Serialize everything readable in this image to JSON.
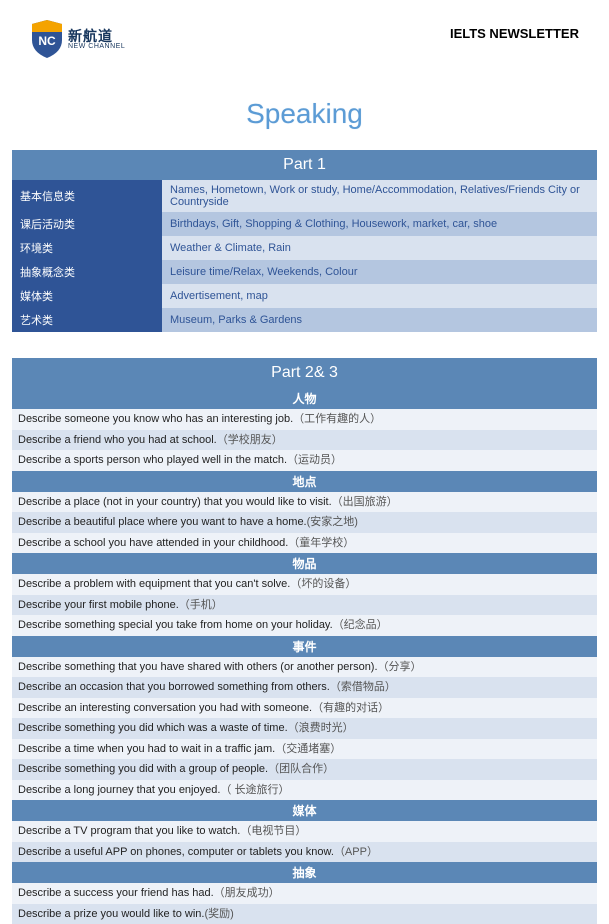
{
  "header": {
    "logo_cn": "新航道",
    "logo_en": "NEW CHANNEL",
    "logo_badge": "NC",
    "newsletter": "IELTS NEWSLETTER"
  },
  "title": "Speaking",
  "colors": {
    "title": "#5b9bd5",
    "part_header_bg": "#5b87b6",
    "label_bg": "#2f5496",
    "row_odd": "#d9e2ef",
    "row_even": "#b4c6e0",
    "item_odd": "#eef2f8",
    "item_even": "#d9e2ef",
    "text": "#222222",
    "cn_text": "#555555",
    "logo_shield_blue": "#2f5496",
    "logo_shield_orange": "#f4a300"
  },
  "part1": {
    "header": "Part 1",
    "rows": [
      {
        "label": "基本信息类",
        "value": "Names, Hometown, Work or study, Home/Accommodation, Relatives/Friends City or Countryside"
      },
      {
        "label": "课后活动类",
        "value": "Birthdays, Gift, Shopping & Clothing, Housework, market, car, shoe"
      },
      {
        "label": "环境类",
        "value": "Weather & Climate, Rain"
      },
      {
        "label": "抽象概念类",
        "value": "Leisure time/Relax, Weekends, Colour"
      },
      {
        "label": "媒体类",
        "value": "Advertisement, map"
      },
      {
        "label": "艺术类",
        "value": "Museum, Parks & Gardens"
      }
    ]
  },
  "part23": {
    "header": "Part 2& 3",
    "sections": [
      {
        "title": "人物",
        "items": [
          {
            "en": "Describe someone you know who has an interesting job.",
            "cn": "（工作有趣的人）"
          },
          {
            "en": "Describe a friend who you had at school.",
            "cn": "（学校朋友）"
          },
          {
            "en": "Describe a sports person who played well in the match.",
            "cn": "（运动员）"
          }
        ]
      },
      {
        "title": "地点",
        "items": [
          {
            "en": "Describe a place (not in your country) that you would like to visit.",
            "cn": "（出国旅游）"
          },
          {
            "en": "Describe a beautiful place where you want to have a home.",
            "cn": "(安家之地)"
          },
          {
            "en": "Describe a school you have attended in your childhood.",
            "cn": "（童年学校）"
          }
        ]
      },
      {
        "title": "物品",
        "items": [
          {
            "en": "Describe a problem with equipment that you can't solve.",
            "cn": "（坏的设备）"
          },
          {
            "en": "Describe your first mobile phone.",
            "cn": "（手机）"
          },
          {
            "en": "Describe something special you take from home on your holiday.",
            "cn": "（纪念品）"
          }
        ]
      },
      {
        "title": "事件",
        "items": [
          {
            "en": "Describe something that you have shared with others (or another person).",
            "cn": "（分享）"
          },
          {
            "en": "Describe an occasion that you borrowed something from others.",
            "cn": "（索借物品）"
          },
          {
            "en": "Describe an interesting conversation you had with someone.",
            "cn": "（有趣的对话）"
          },
          {
            "en": "Describe something you did which was a waste of time.",
            "cn": "（浪费时光）"
          },
          {
            "en": "Describe a time when you had to wait in a traffic jam.",
            "cn": "（交通堵塞）"
          },
          {
            "en": "Describe something you did with a group of people.",
            "cn": "（团队合作）"
          },
          {
            "en": "Describe a long journey that you enjoyed.",
            "cn": "（ 长途旅行）"
          }
        ]
      },
      {
        "title": "媒体",
        "items": [
          {
            "en": "Describe a TV program that you like to watch.",
            "cn": "（电视节目）"
          },
          {
            "en": "Describe a useful APP on phones, computer or tablets you know.",
            "cn": "（APP）"
          }
        ]
      },
      {
        "title": "抽象",
        "items": [
          {
            "en": "Describe a success your friend has had.",
            "cn": "（朋友成功）"
          },
          {
            "en": "Describe a prize you would like to win.",
            "cn": "(奖励)"
          }
        ]
      }
    ]
  }
}
